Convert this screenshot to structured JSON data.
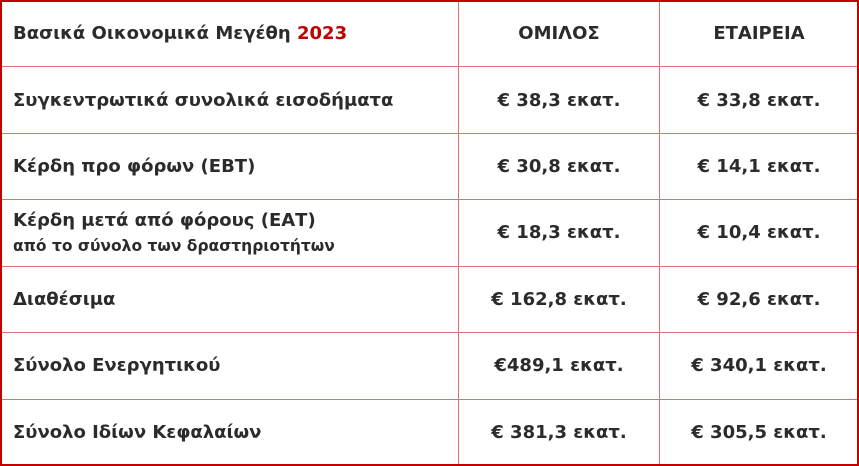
{
  "header": {
    "title": "Βασικά Οικονομικά Μεγέθη",
    "year": "2023",
    "col_group": "ΟΜΙΛΟΣ",
    "col_company": "ΕΤΑΙΡΕΙΑ"
  },
  "accent_color": "#c00000",
  "rows": [
    {
      "label": "Συγκεντρωτικά συνολικά εισοδήματα",
      "sublabel": "",
      "group": "€ 38,3 εκατ.",
      "company": "€ 33,8 εκατ."
    },
    {
      "label": "Κέρδη προ φόρων (ΕΒΤ)",
      "sublabel": "",
      "group": "€ 30,8 εκατ.",
      "company": "€ 14,1 εκατ."
    },
    {
      "label": "Κέρδη μετά από φόρους (ΕΑΤ)",
      "sublabel": "από το σύνολο των δραστηριοτήτων",
      "group": "€ 18,3 εκατ.",
      "company": "€ 10,4 εκατ."
    },
    {
      "label": "Διαθέσιμα",
      "sublabel": "",
      "group": "€ 162,8 εκατ.",
      "company": "€ 92,6 εκατ."
    },
    {
      "label": "Σύνολο Ενεργητικού",
      "sublabel": "",
      "group": "€489,1 εκατ.",
      "company": "€ 340,1 εκατ."
    },
    {
      "label": "Σύνολο Ιδίων Κεφαλαίων",
      "sublabel": "",
      "group": "€ 381,3 εκατ.",
      "company": "€ 305,5 εκατ."
    }
  ]
}
